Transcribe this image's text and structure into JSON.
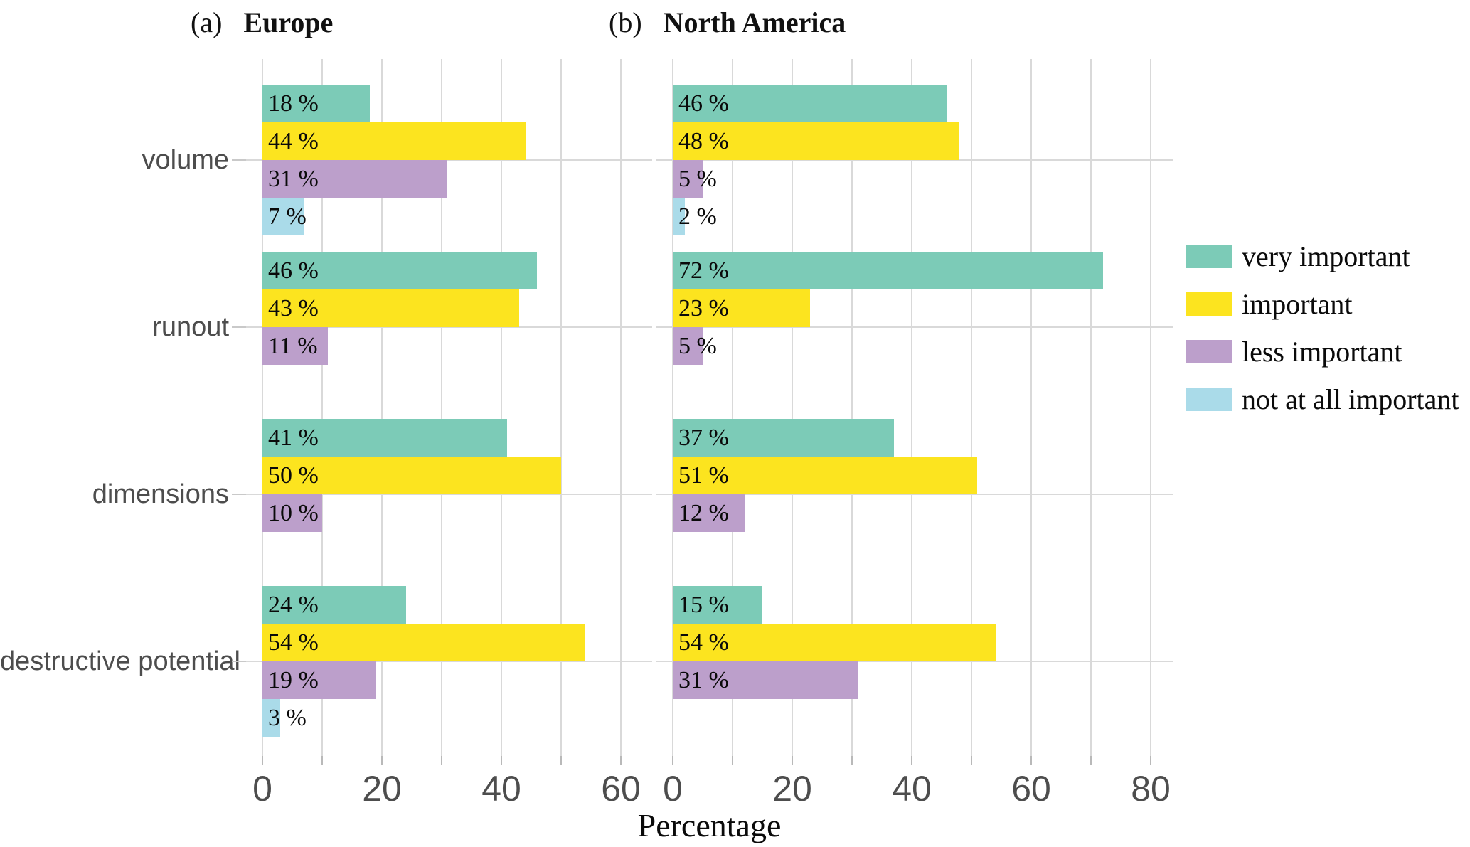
{
  "figure": {
    "panel_a_prefix": "(a)",
    "panel_a_title": "Europe",
    "panel_b_prefix": "(b)",
    "panel_b_title": "North America",
    "x_axis_label": "Percentage"
  },
  "legend": {
    "items": [
      {
        "label": "very important",
        "color": "#7ccbb7"
      },
      {
        "label": "important",
        "color": "#fce41f"
      },
      {
        "label": "less important",
        "color": "#bc9fcb"
      },
      {
        "label": "not at all important",
        "color": "#aadbe9"
      }
    ]
  },
  "chart_data": {
    "type": "bar",
    "orientation": "horizontal",
    "title": "",
    "xlabel": "Percentage",
    "ylabel": "",
    "grid": true,
    "legend_position": "right",
    "value_suffix": " %",
    "categories": [
      "volume",
      "runout",
      "dimensions",
      "destructive potential"
    ],
    "panels": [
      {
        "title": "Europe",
        "x_ticks": [
          "0",
          "20",
          "40",
          "60"
        ],
        "tick_step": 20,
        "grid_step": 10,
        "grid_max": 60,
        "xlim": [
          0,
          65
        ],
        "series": [
          {
            "name": "very important",
            "color": "#7ccbb7",
            "values": [
              18,
              46,
              41,
              24
            ]
          },
          {
            "name": "important",
            "color": "#fce41f",
            "values": [
              44,
              43,
              50,
              54
            ]
          },
          {
            "name": "less important",
            "color": "#bc9fcb",
            "values": [
              31,
              11,
              10,
              19
            ]
          },
          {
            "name": "not at all important",
            "color": "#aadbe9",
            "values": [
              7,
              null,
              null,
              3
            ]
          }
        ]
      },
      {
        "title": "North America",
        "x_ticks": [
          "0",
          "20",
          "40",
          "60",
          "80"
        ],
        "tick_step": 20,
        "grid_step": 10,
        "grid_max": 80,
        "xlim": [
          0,
          83
        ],
        "series": [
          {
            "name": "very important",
            "color": "#7ccbb7",
            "values": [
              46,
              72,
              37,
              15
            ]
          },
          {
            "name": "important",
            "color": "#fce41f",
            "values": [
              48,
              23,
              51,
              54
            ]
          },
          {
            "name": "less important",
            "color": "#bc9fcb",
            "values": [
              5,
              5,
              12,
              31
            ]
          },
          {
            "name": "not at all important",
            "color": "#aadbe9",
            "values": [
              2,
              null,
              null,
              null
            ]
          }
        ]
      }
    ]
  }
}
